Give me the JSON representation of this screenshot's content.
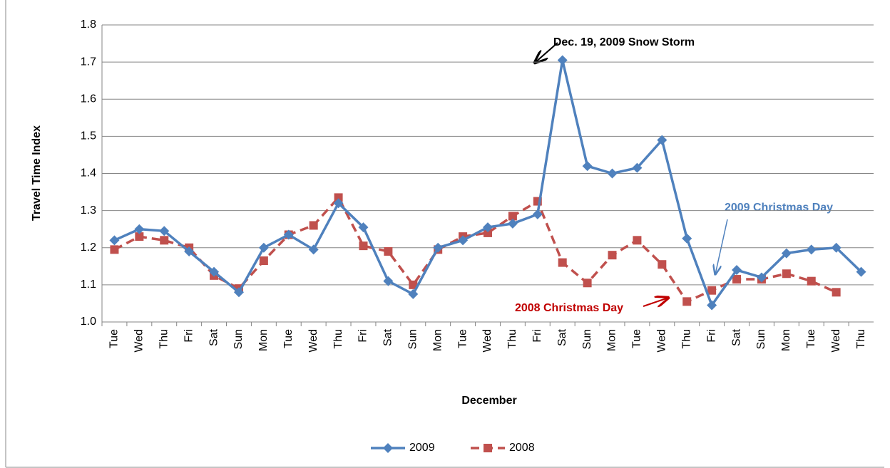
{
  "chart_data": {
    "type": "line",
    "xlabel": "December",
    "ylabel": "Travel Time Index",
    "categories": [
      "Tue",
      "Wed",
      "Thu",
      "Fri",
      "Sat",
      "Sun",
      "Mon",
      "Tue",
      "Wed",
      "Thu",
      "Fri",
      "Sat",
      "Sun",
      "Mon",
      "Tue",
      "Wed",
      "Thu",
      "Fri",
      "Sat",
      "Sun",
      "Mon",
      "Tue",
      "Wed",
      "Thu",
      "Fri",
      "Sat",
      "Sun",
      "Mon",
      "Tue",
      "Wed",
      "Thu"
    ],
    "series": [
      {
        "name": "2009",
        "color": "#4f81bd",
        "marker": "diamond",
        "dashed": false,
        "values": [
          1.22,
          1.25,
          1.245,
          1.19,
          1.135,
          1.08,
          1.2,
          1.235,
          1.195,
          1.32,
          1.255,
          1.11,
          1.075,
          1.2,
          1.22,
          1.255,
          1.265,
          1.29,
          1.705,
          1.42,
          1.4,
          1.415,
          1.49,
          1.225,
          1.045,
          1.14,
          1.12,
          1.185,
          1.195,
          1.2,
          1.135
        ]
      },
      {
        "name": "2008",
        "color": "#c0504d",
        "marker": "square",
        "dashed": true,
        "values": [
          1.195,
          1.23,
          1.22,
          1.2,
          1.125,
          1.09,
          1.165,
          1.235,
          1.26,
          1.335,
          1.205,
          1.19,
          1.1,
          1.195,
          1.23,
          1.24,
          1.285,
          1.325,
          1.16,
          1.105,
          1.18,
          1.22,
          1.155,
          1.055,
          1.085,
          1.115,
          1.115,
          1.13,
          1.11,
          1.08,
          null
        ]
      }
    ],
    "ylim": [
      1.0,
      1.8
    ],
    "yticks": [
      {
        "value": 1,
        "label": "1.0"
      },
      1.1,
      1.2,
      1.3,
      1.4,
      1.5,
      1.6,
      1.7,
      1.8
    ],
    "grid": true,
    "legend": "bottom",
    "annotations": [
      "Dec. 19, 2009 Snow Storm",
      "2009 Christmas Day",
      "2008 Christmas Day"
    ]
  }
}
